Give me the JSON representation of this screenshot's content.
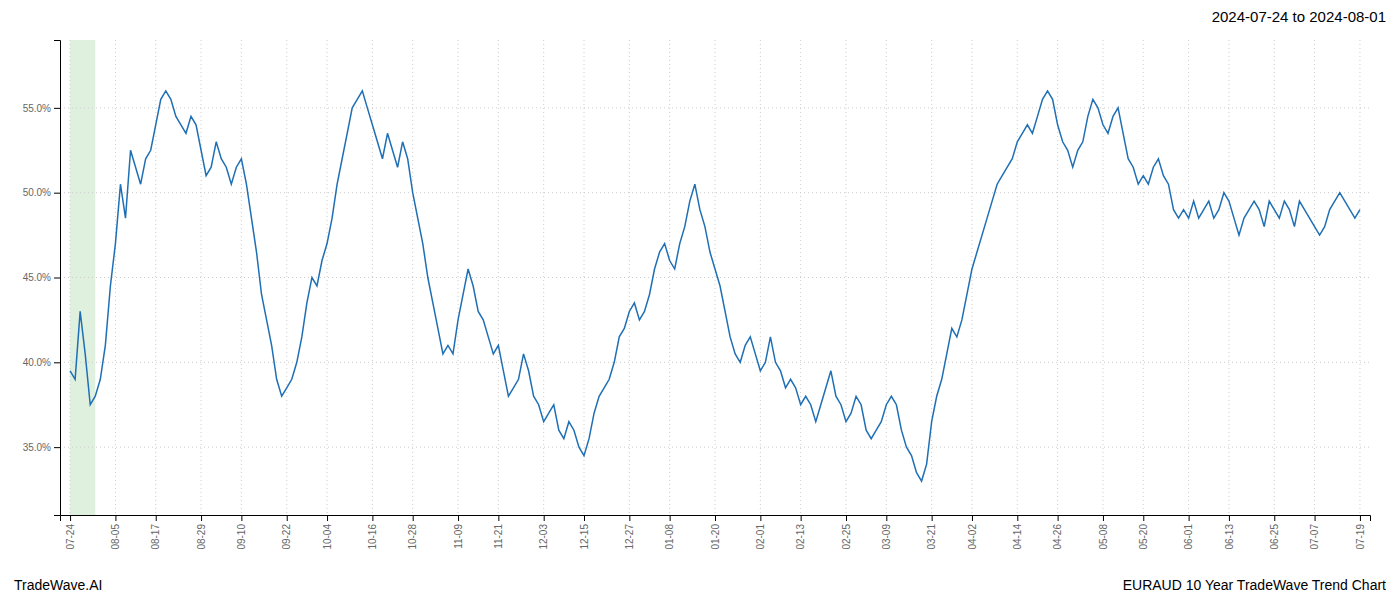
{
  "chart_data": {
    "type": "line",
    "title": "2024-07-24 to 2024-08-01",
    "annotations": [
      "TradeWave.AI",
      "EURAUD 10 Year TradeWave Trend Chart"
    ],
    "color": "#1f6fb5",
    "grid": true,
    "highlight": {
      "start": 0,
      "end": 5,
      "color": "#dff0df"
    },
    "ylim": [
      31.0,
      59.0
    ],
    "yticks": [
      {
        "value": 35.0,
        "label": "35.0%"
      },
      {
        "value": 40.0,
        "label": "40.0%"
      },
      {
        "value": 45.0,
        "label": "45.0%"
      },
      {
        "value": 50.0,
        "label": "50.0%"
      },
      {
        "value": 55.0,
        "label": "55.0%"
      }
    ],
    "categories": [
      "07-24",
      null,
      null,
      null,
      null,
      null,
      null,
      null,
      null,
      "08-05",
      null,
      null,
      null,
      null,
      null,
      null,
      null,
      "08-17",
      null,
      null,
      null,
      null,
      null,
      null,
      null,
      null,
      "08-29",
      null,
      null,
      null,
      null,
      null,
      null,
      null,
      "09-10",
      null,
      null,
      null,
      null,
      null,
      null,
      null,
      null,
      "09-22",
      null,
      null,
      null,
      null,
      null,
      null,
      null,
      "10-04",
      null,
      null,
      null,
      null,
      null,
      null,
      null,
      null,
      "10-16",
      null,
      null,
      null,
      null,
      null,
      null,
      null,
      "10-28",
      null,
      null,
      null,
      null,
      null,
      null,
      null,
      null,
      "11-09",
      null,
      null,
      null,
      null,
      null,
      null,
      null,
      "11-21",
      null,
      null,
      null,
      null,
      null,
      null,
      null,
      null,
      "12-03",
      null,
      null,
      null,
      null,
      null,
      null,
      null,
      "12-15",
      null,
      null,
      null,
      null,
      null,
      null,
      null,
      null,
      "12-27",
      null,
      null,
      null,
      null,
      null,
      null,
      null,
      "01-08",
      null,
      null,
      null,
      null,
      null,
      null,
      null,
      null,
      "01-20",
      null,
      null,
      null,
      null,
      null,
      null,
      null,
      null,
      "02-01",
      null,
      null,
      null,
      null,
      null,
      null,
      null,
      "02-13",
      null,
      null,
      null,
      null,
      null,
      null,
      null,
      null,
      "02-25",
      null,
      null,
      null,
      null,
      null,
      null,
      null,
      "03-09",
      null,
      null,
      null,
      null,
      null,
      null,
      null,
      null,
      "03-21",
      null,
      null,
      null,
      null,
      null,
      null,
      null,
      "04-02",
      null,
      null,
      null,
      null,
      null,
      null,
      null,
      null,
      "04-14",
      null,
      null,
      null,
      null,
      null,
      null,
      null,
      "04-26",
      null,
      null,
      null,
      null,
      null,
      null,
      null,
      null,
      "05-08",
      null,
      null,
      null,
      null,
      null,
      null,
      null,
      "05-20",
      null,
      null,
      null,
      null,
      null,
      null,
      null,
      null,
      "06-01",
      null,
      null,
      null,
      null,
      null,
      null,
      null,
      "06-13",
      null,
      null,
      null,
      null,
      null,
      null,
      null,
      null,
      "06-25",
      null,
      null,
      null,
      null,
      null,
      null,
      null,
      "07-07",
      null,
      null,
      null,
      null,
      null,
      null,
      null,
      null,
      "07-19"
    ],
    "values": [
      39.5,
      39.0,
      43.0,
      40.5,
      37.5,
      38.0,
      39.0,
      41.0,
      44.5,
      47.0,
      50.5,
      48.5,
      52.5,
      51.5,
      50.5,
      52.0,
      52.5,
      54.0,
      55.5,
      56.0,
      55.5,
      54.5,
      54.0,
      53.5,
      54.5,
      54.0,
      52.5,
      51.0,
      51.5,
      53.0,
      52.0,
      51.5,
      50.5,
      51.5,
      52.0,
      50.5,
      48.5,
      46.5,
      44.0,
      42.5,
      41.0,
      39.0,
      38.0,
      38.5,
      39.0,
      40.0,
      41.5,
      43.5,
      45.0,
      44.5,
      46.0,
      47.0,
      48.5,
      50.5,
      52.0,
      53.5,
      55.0,
      55.5,
      56.0,
      55.0,
      54.0,
      53.0,
      52.0,
      53.5,
      52.5,
      51.5,
      53.0,
      52.0,
      50.0,
      48.5,
      47.0,
      45.0,
      43.5,
      42.0,
      40.5,
      41.0,
      40.5,
      42.5,
      44.0,
      45.5,
      44.5,
      43.0,
      42.5,
      41.5,
      40.5,
      41.0,
      39.5,
      38.0,
      38.5,
      39.0,
      40.5,
      39.5,
      38.0,
      37.5,
      36.5,
      37.0,
      37.5,
      36.0,
      35.5,
      36.5,
      36.0,
      35.0,
      34.5,
      35.5,
      37.0,
      38.0,
      38.5,
      39.0,
      40.0,
      41.5,
      42.0,
      43.0,
      43.5,
      42.5,
      43.0,
      44.0,
      45.5,
      46.5,
      47.0,
      46.0,
      45.5,
      47.0,
      48.0,
      49.5,
      50.5,
      49.0,
      48.0,
      46.5,
      45.5,
      44.5,
      43.0,
      41.5,
      40.5,
      40.0,
      41.0,
      41.5,
      40.5,
      39.5,
      40.0,
      41.5,
      40.0,
      39.5,
      38.5,
      39.0,
      38.5,
      37.5,
      38.0,
      37.5,
      36.5,
      37.5,
      38.5,
      39.5,
      38.0,
      37.5,
      36.5,
      37.0,
      38.0,
      37.5,
      36.0,
      35.5,
      36.0,
      36.5,
      37.5,
      38.0,
      37.5,
      36.0,
      35.0,
      34.5,
      33.5,
      33.0,
      34.0,
      36.5,
      38.0,
      39.0,
      40.5,
      42.0,
      41.5,
      42.5,
      44.0,
      45.5,
      46.5,
      47.5,
      48.5,
      49.5,
      50.5,
      51.0,
      51.5,
      52.0,
      53.0,
      53.5,
      54.0,
      53.5,
      54.5,
      55.5,
      56.0,
      55.5,
      54.0,
      53.0,
      52.5,
      51.5,
      52.5,
      53.0,
      54.5,
      55.5,
      55.0,
      54.0,
      53.5,
      54.5,
      55.0,
      53.5,
      52.0,
      51.5,
      50.5,
      51.0,
      50.5,
      51.5,
      52.0,
      51.0,
      50.5,
      49.0,
      48.5,
      49.0,
      48.5,
      49.5,
      48.5,
      49.0,
      49.5,
      48.5,
      49.0,
      50.0,
      49.5,
      48.5,
      47.5,
      48.5,
      49.0,
      49.5,
      49.0,
      48.0,
      49.5,
      49.0,
      48.5,
      49.5,
      49.0,
      48.0,
      49.5,
      49.0,
      48.5,
      48.0,
      47.5,
      48.0,
      49.0,
      49.5,
      50.0,
      49.5,
      49.0,
      48.5,
      49.0
    ]
  }
}
